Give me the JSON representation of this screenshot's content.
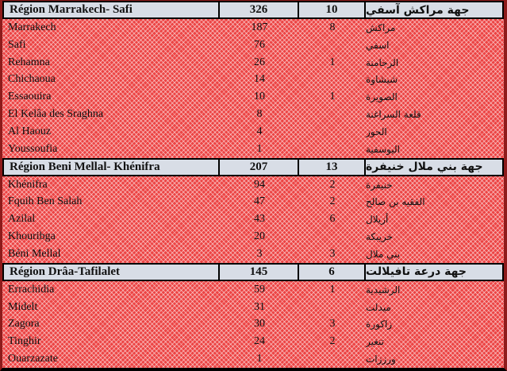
{
  "colors": {
    "pattern_red": "#ec4343",
    "pattern_light_dots": "#f7a8a8",
    "header_bg": "#d8dde6",
    "edge_dark_red": "#8e1b1b",
    "border_black": "#000000"
  },
  "table": {
    "sections": [
      {
        "header": {
          "fr": "Région Marrakech- Safi",
          "v1": "326",
          "v2": "10",
          "ar": "جهة مراكش آسفي"
        },
        "rows": [
          {
            "fr": "Marrakech",
            "v1": "187",
            "v2": "8",
            "ar": "مراكش"
          },
          {
            "fr": "Safi",
            "v1": "76",
            "v2": "",
            "ar": "اسفي"
          },
          {
            "fr": "Rehamna",
            "v1": "26",
            "v2": "1",
            "ar": "الرحامنة"
          },
          {
            "fr": "Chichaoua",
            "v1": "14",
            "v2": "",
            "ar": "شيشاوة"
          },
          {
            "fr": "Essaouira",
            "v1": "10",
            "v2": "1",
            "ar": "الصويرة"
          },
          {
            "fr": "El Kelâa des  Sraghna",
            "v1": "8",
            "v2": "",
            "ar": "قلعة السراغنة"
          },
          {
            "fr": "Al  Haouz",
            "v1": "4",
            "v2": "",
            "ar": "الحوز"
          },
          {
            "fr": "Youssoufia",
            "v1": "1",
            "v2": "",
            "ar": "اليوسفية"
          }
        ]
      },
      {
        "header": {
          "fr": "Région Beni Mellal- Khénifra",
          "v1": "207",
          "v2": "13",
          "ar": "جهة بني ملال خنيفرة"
        },
        "rows": [
          {
            "fr": "Khénifra",
            "v1": "94",
            "v2": "2",
            "ar": "خنيفرة"
          },
          {
            "fr": "Fquih Ben Salah",
            "v1": "47",
            "v2": "2",
            "ar": "الفقيه بن صالح"
          },
          {
            "fr": "Azilal",
            "v1": "43",
            "v2": "6",
            "ar": "أزيلال"
          },
          {
            "fr": "Khouribga",
            "v1": "20",
            "v2": "",
            "ar": "خريبكة"
          },
          {
            "fr": "Béni Mellal",
            "v1": "3",
            "v2": "3",
            "ar": "بني ملال"
          }
        ]
      },
      {
        "header": {
          "fr": "Région Drâa-Tafilalet",
          "v1": "145",
          "v2": "6",
          "ar": "جهة درعة تافيلالت"
        },
        "rows": [
          {
            "fr": "Errachidia",
            "v1": "59",
            "v2": "1",
            "ar": "الرشيدية"
          },
          {
            "fr": "Midelt",
            "v1": "31",
            "v2": "",
            "ar": "ميدلت"
          },
          {
            "fr": "Zagora",
            "v1": "30",
            "v2": "3",
            "ar": "زاكورة"
          },
          {
            "fr": "Tinghir",
            "v1": "24",
            "v2": "2",
            "ar": "تنغير"
          },
          {
            "fr": "Ouarzazate",
            "v1": "1",
            "v2": "",
            "ar": "ورززات"
          }
        ]
      }
    ]
  }
}
